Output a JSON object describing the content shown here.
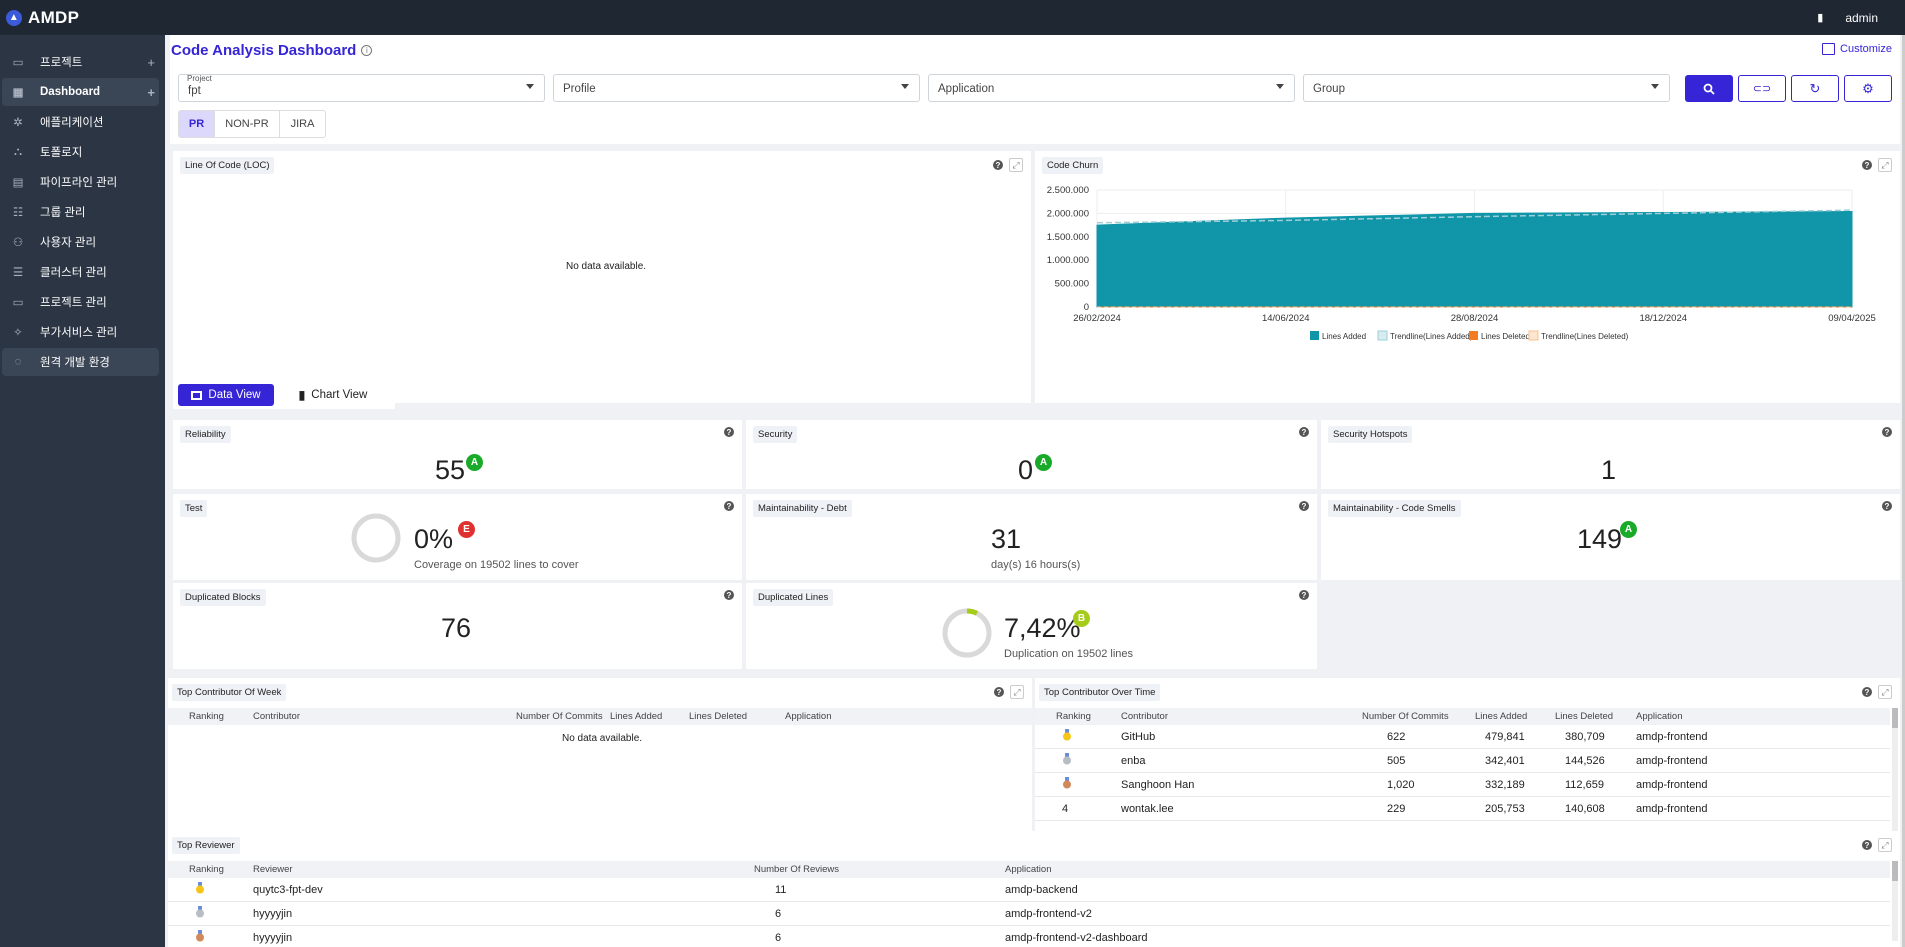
{
  "app": {
    "title": "AMDP",
    "user": "admin"
  },
  "sidebar": {
    "items": [
      {
        "label": "프로젝트",
        "icon": "folder-icon",
        "plus": true
      },
      {
        "label": "Dashboard",
        "icon": "dashboard-icon",
        "plus": true
      },
      {
        "label": "애플리케이션",
        "icon": "application-icon"
      },
      {
        "label": "토폴로지",
        "icon": "topology-icon"
      },
      {
        "label": "파이프라인 관리",
        "icon": "pipeline-icon"
      },
      {
        "label": "그룹 관리",
        "icon": "group-icon"
      },
      {
        "label": "사용자 관리",
        "icon": "user-settings-icon"
      },
      {
        "label": "클러스터 관리",
        "icon": "cluster-icon"
      },
      {
        "label": "프로젝트 관리",
        "icon": "project-icon"
      },
      {
        "label": "부가서비스 관리",
        "icon": "addon-icon"
      },
      {
        "label": "원격 개발 환경",
        "icon": "remote-dev-icon"
      }
    ]
  },
  "header": {
    "title": "Code Analysis Dashboard",
    "customize": "Customize"
  },
  "filters": {
    "project_label": "Project",
    "project_value": "fpt",
    "profile": "Profile",
    "application": "Application",
    "group": "Group"
  },
  "tabs": [
    "PR",
    "NON-PR",
    "JIRA"
  ],
  "loc": {
    "title": "Line Of Code (LOC)",
    "no_data": "No data available."
  },
  "churn": {
    "title": "Code Churn"
  },
  "chart_data": {
    "type": "area",
    "title": "Code Churn",
    "x": [
      "26/02/2024",
      "14/06/2024",
      "28/08/2024",
      "18/12/2024",
      "09/04/2025"
    ],
    "y_ticks": [
      "2.500.000",
      "2.000.000",
      "1.500.000",
      "1.000.000",
      "500.000",
      "0"
    ],
    "ylim": [
      0,
      2500000
    ],
    "series": [
      {
        "name": "Lines Added",
        "color": "#1196a9",
        "values": [
          1750000,
          1900000,
          2000000,
          2020000,
          2040000
        ]
      },
      {
        "name": "Trendline(Lines Added)",
        "color": "#9ecfd8",
        "values": [
          1800000,
          1850000,
          1930000,
          2000000,
          2070000
        ]
      },
      {
        "name": "Lines Deleted",
        "color": "#f27c21",
        "values": [
          0,
          0,
          0,
          0,
          0
        ]
      },
      {
        "name": "Trendline(Lines Deleted)",
        "color": "#f8c18d",
        "values": [
          0,
          0,
          0,
          0,
          0
        ]
      }
    ],
    "legend": "bottom"
  },
  "view_toggle": {
    "data": "Data View",
    "chart": "Chart View"
  },
  "metrics": {
    "reliability": {
      "title": "Reliability",
      "value": "55",
      "grade": "A"
    },
    "security": {
      "title": "Security",
      "value": "0",
      "grade": "A"
    },
    "hotspots": {
      "title": "Security Hotspots",
      "value": "1"
    },
    "test": {
      "title": "Test",
      "value": "0%",
      "grade": "E",
      "sub": "Coverage on 19502 lines to cover",
      "progress": 0
    },
    "debt": {
      "title": "Maintainability - Debt",
      "value": "31",
      "sub": "day(s) 16 hours(s)"
    },
    "smells": {
      "title": "Maintainability - Code Smells",
      "value": "149",
      "grade": "A"
    },
    "dup_blocks": {
      "title": "Duplicated Blocks",
      "value": "76"
    },
    "dup_lines": {
      "title": "Duplicated Lines",
      "value": "7,42%",
      "grade": "B",
      "sub": "Duplication on 19502 lines",
      "progress": 0.0742
    }
  },
  "top_week": {
    "title": "Top Contributor Of Week",
    "headers": [
      "Ranking",
      "Contributor",
      "Number Of Commits",
      "Lines Added",
      "Lines Deleted",
      "Application"
    ],
    "no_data": "No data available."
  },
  "top_time": {
    "title": "Top Contributor Over Time",
    "headers": [
      "Ranking",
      "Contributor",
      "Number Of Commits",
      "Lines Added",
      "Lines Deleted",
      "Application"
    ],
    "rows": [
      {
        "rank": "",
        "contributor": "GitHub",
        "commits": "622",
        "added": "479,841",
        "deleted": "380,709",
        "app": "amdp-frontend"
      },
      {
        "rank": "",
        "contributor": "enba",
        "commits": "505",
        "added": "342,401",
        "deleted": "144,526",
        "app": "amdp-frontend"
      },
      {
        "rank": "",
        "contributor": "Sanghoon Han",
        "commits": "1,020",
        "added": "332,189",
        "deleted": "112,659",
        "app": "amdp-frontend"
      },
      {
        "rank": "4",
        "contributor": "wontak.lee",
        "commits": "229",
        "added": "205,753",
        "deleted": "140,608",
        "app": "amdp-frontend"
      }
    ]
  },
  "top_reviewer": {
    "title": "Top Reviewer",
    "headers": [
      "Ranking",
      "Reviewer",
      "Number Of Reviews",
      "Application"
    ],
    "rows": [
      {
        "rank": "",
        "reviewer": "quytc3-fpt-dev",
        "reviews": "11",
        "app": "amdp-backend"
      },
      {
        "rank": "",
        "reviewer": "hyyyyjin",
        "reviews": "6",
        "app": "amdp-frontend-v2"
      },
      {
        "rank": "",
        "reviewer": "hyyyyjin",
        "reviews": "6",
        "app": "amdp-frontend-v2-dashboard"
      }
    ]
  },
  "colors": {
    "accent": "#3525d6",
    "gradeA": "#1aaa2a",
    "gradeE": "#e03131",
    "gradeB": "#a5cc19",
    "topbar": "#1f2733",
    "sidebar": "#2b3544"
  }
}
